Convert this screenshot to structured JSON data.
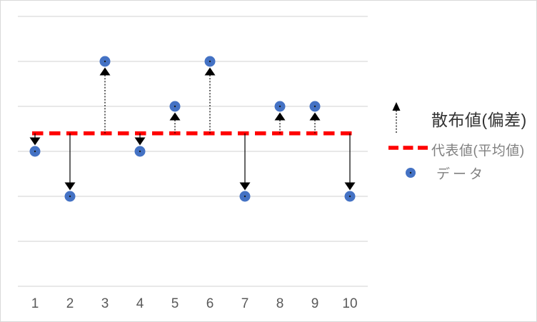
{
  "chart_data": {
    "type": "scatter",
    "title": "",
    "xlabel": "",
    "ylabel": "",
    "x": [
      1,
      2,
      3,
      4,
      5,
      6,
      7,
      8,
      9,
      10
    ],
    "x_tick_labels": [
      "1",
      "2",
      "3",
      "4",
      "5",
      "6",
      "7",
      "8",
      "9",
      "10"
    ],
    "series": [
      {
        "name": "データ",
        "values": [
          3,
          2,
          5,
          3,
          4,
          5,
          2,
          4,
          4,
          2
        ]
      }
    ],
    "mean_line": {
      "name": "代表値(平均値)",
      "value": 3.4
    },
    "deviation_arrows": {
      "name": "散布値(偏差)",
      "style_above_mean": "dotted-stem-up-arrow",
      "style_below_mean": "solid-stem-down-arrow"
    },
    "ylim": [
      0,
      6
    ],
    "gridline_step": 1,
    "grid": true,
    "legend_position": "right"
  },
  "legend": {
    "items": [
      {
        "label": "散布値(偏差)",
        "symbol": "up-arrow-dotted"
      },
      {
        "label": "代表値(平均値)",
        "symbol": "red-dashed-line"
      },
      {
        "label": "データ",
        "symbol": "blue-dot"
      }
    ]
  },
  "colors": {
    "point": "#4472C4",
    "point_center": "#1A1A1A",
    "mean_line": "#FF0000",
    "arrow": "#000000",
    "gridline": "#D9D9D9",
    "axis_text": "#595959",
    "legend_text_primary": "#333333",
    "legend_text_secondary": "#808080",
    "frame_border": "#D9D9D9",
    "background": "#FFFFFF"
  }
}
